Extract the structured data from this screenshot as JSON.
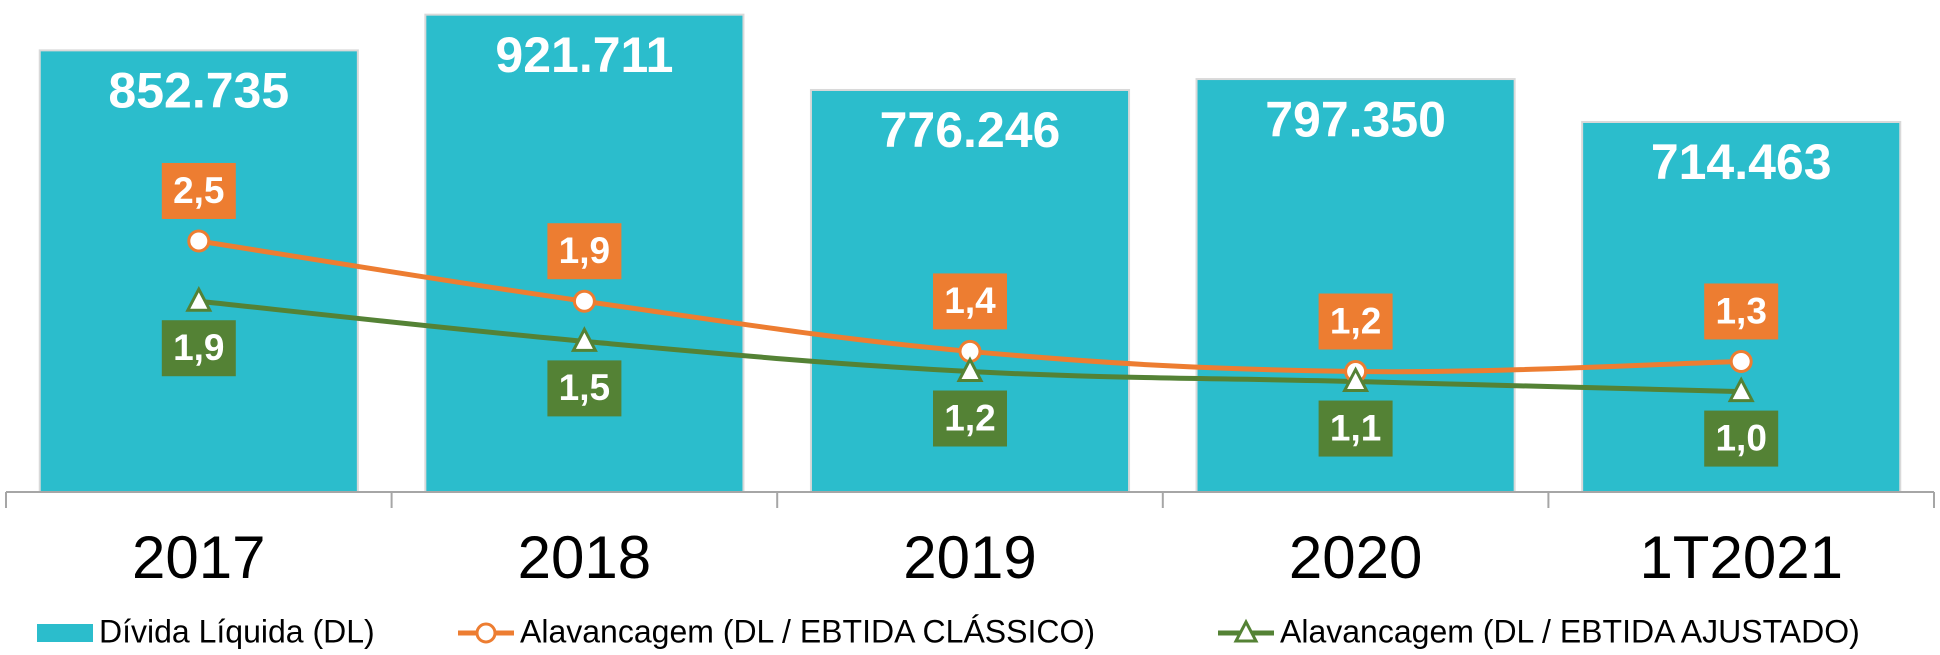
{
  "chart_data": {
    "type": "bar",
    "categories": [
      "2017",
      "2018",
      "2019",
      "2020",
      "1T2021"
    ],
    "ylim": [
      0,
      950000
    ],
    "y2lim": [
      0,
      4.9
    ],
    "series": [
      {
        "name": "Dívida Líquida (DL)",
        "type": "bar",
        "color": "#2bbdcc",
        "values": [
          852735,
          921711,
          776246,
          797350,
          714463
        ],
        "value_labels": [
          "852.735",
          "921.711",
          "776.246",
          "797.350",
          "714.463"
        ]
      },
      {
        "name": "Alavancagem (DL / EBTIDA CLÁSSICO)",
        "type": "line",
        "axis": "y2",
        "color": "#ed7d31",
        "marker": "circle",
        "values": [
          2.5,
          1.9,
          1.4,
          1.2,
          1.3
        ],
        "value_labels": [
          "2,5",
          "1,9",
          "1,4",
          "1,2",
          "1,3"
        ]
      },
      {
        "name": "Alavancagem (DL / EBTIDA AJUSTADO)",
        "type": "line",
        "axis": "y2",
        "color": "#548235",
        "marker": "triangle",
        "values": [
          1.9,
          1.5,
          1.2,
          1.1,
          1.0
        ],
        "value_labels": [
          "1,9",
          "1,5",
          "1,2",
          "1,1",
          "1,0"
        ]
      }
    ]
  }
}
